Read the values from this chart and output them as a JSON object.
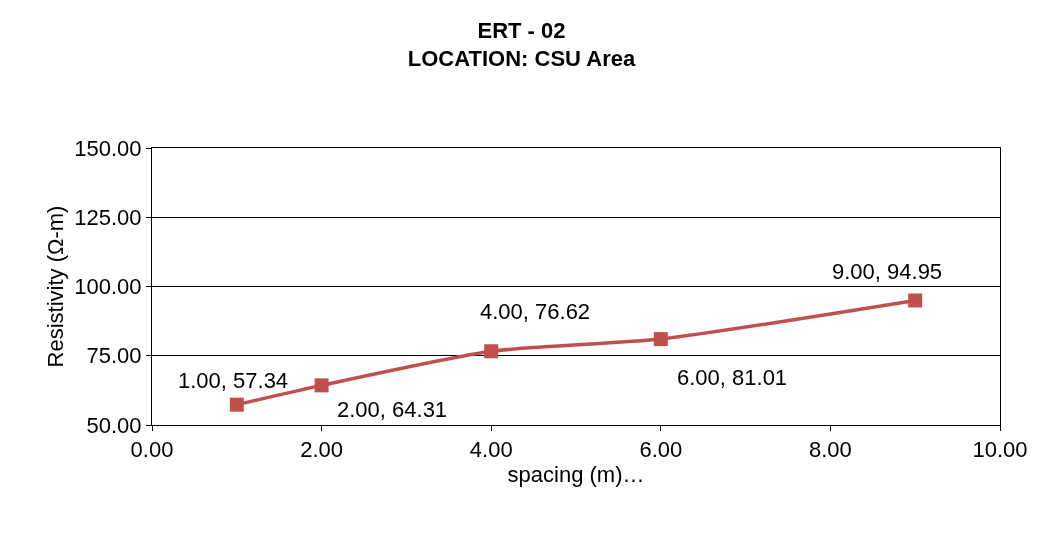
{
  "chart_data": {
    "type": "line",
    "title": "ERT - 02",
    "subtitle": "LOCATION: CSU Area",
    "xlabel": "spacing (m)…",
    "ylabel": "Resistivity (Ω-m)",
    "x": [
      1,
      2,
      4,
      6,
      9
    ],
    "series": [
      {
        "color": "#c0504d",
        "values": [
          57.34,
          64.31,
          76.62,
          81.01,
          94.95
        ],
        "value_labels": [
          "1.00, 57.34",
          "2.00, 64.31",
          "4.00, 76.62",
          "6.00, 81.01",
          "9.00, 94.95"
        ]
      }
    ],
    "xlim": [
      0,
      10
    ],
    "xticks": [
      {
        "value": 0,
        "label": "0.00"
      },
      {
        "value": 2,
        "label": "2.00"
      },
      {
        "value": 4,
        "label": "4.00"
      },
      {
        "value": 6,
        "label": "6.00"
      },
      {
        "value": 8,
        "label": "8.00"
      },
      {
        "value": 10,
        "label": "10.00"
      }
    ],
    "ylim": [
      50,
      150
    ],
    "yticks": [
      {
        "value": 50,
        "label": "50.00"
      },
      {
        "value": 75,
        "label": "75.00"
      },
      {
        "value": 100,
        "label": "100.00"
      },
      {
        "value": 125,
        "label": "125.00"
      },
      {
        "value": 150,
        "label": "150.00"
      }
    ],
    "grid": "y",
    "legend": false,
    "marker": "square",
    "line_style": "solid"
  }
}
